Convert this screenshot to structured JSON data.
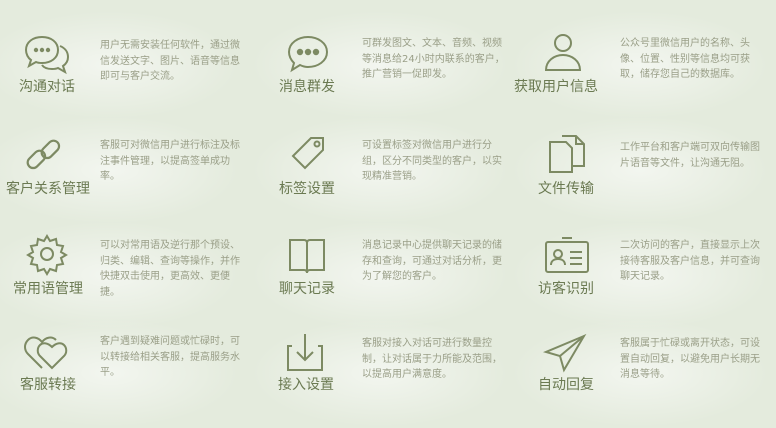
{
  "features": [
    {
      "title": "沟通对话",
      "icon": "chat-bubbles-icon",
      "desc": "用户无需安装任何软件，通过微信发送文字、图片、语音等信息即可与客户交流。"
    },
    {
      "title": "消息群发",
      "icon": "message-broadcast-icon",
      "desc": "可群发图文、文本、音频、视频等消息给24小时内联系的客户，推广营销一促即发。"
    },
    {
      "title": "获取用户信息",
      "icon": "user-profile-icon",
      "desc": "公众号里微信用户的名称、头像、位置、性别等信息均可获取，储存您自己的数据库。"
    },
    {
      "title": "客户关系管理",
      "icon": "link-chain-icon",
      "desc": "客服可对微信用户进行标注及标注事件管理，以提高签单成功率。"
    },
    {
      "title": "标签设置",
      "icon": "tag-icon",
      "desc": "可设置标签对微信用户进行分组，区分不同类型的客户，以实现精准营销。"
    },
    {
      "title": "文件传输",
      "icon": "file-transfer-icon",
      "desc": "工作平台和客户端可双向传输图片语音等文件，让沟通无阻。"
    },
    {
      "title": "常用语管理",
      "icon": "gear-icon",
      "desc": "可以对常用语及逆行那个预设、归类、编辑、查询等操作，并作快捷双击使用，更高效、更便捷。"
    },
    {
      "title": "聊天记录",
      "icon": "book-icon",
      "desc": "消息记录中心提供聊天记录的储存和查询，可通过对话分析，更为了解您的客户。"
    },
    {
      "title": "访客识别",
      "icon": "id-card-icon",
      "desc": "二次访问的客户，直接显示上次接待客服及客户信息，并可查询聊天记录。"
    },
    {
      "title": "客服转接",
      "icon": "hearts-icon",
      "desc": "客户遇到疑难问题或忙碌时，可以转接给相关客服，提高服务水平。"
    },
    {
      "title": "接入设置",
      "icon": "download-tray-icon",
      "desc": "客服对接入对话可进行数量控制，让对话属于力所能及范围，以提高用户满意度。"
    },
    {
      "title": "自动回复",
      "icon": "paper-plane-icon",
      "desc": "客服属于忙碌或离开状态，可设置自动回复，以避免用户长期无消息等待。"
    }
  ]
}
